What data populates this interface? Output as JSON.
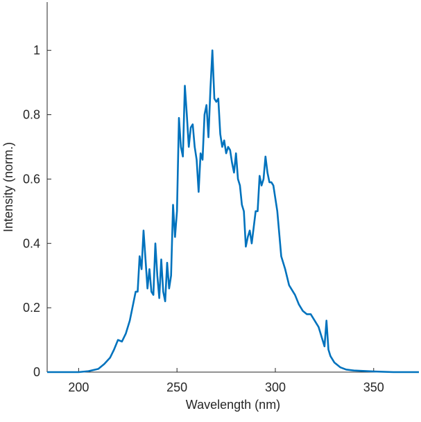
{
  "chart_data": {
    "type": "line",
    "xlabel": "Wavelength (nm)",
    "ylabel": "Intensity (norm.)",
    "color": "#0072bd",
    "x": [
      184,
      190,
      200,
      205,
      210,
      213,
      216,
      218,
      220,
      222,
      224,
      226,
      228,
      229,
      230,
      231,
      232,
      233,
      234,
      235,
      236,
      237,
      238,
      239,
      240,
      241,
      242,
      243,
      244,
      245,
      246,
      247,
      248,
      249,
      250,
      251,
      252,
      253,
      254,
      255,
      256,
      257,
      258,
      259,
      260,
      261,
      262,
      263,
      264,
      265,
      266,
      267,
      268,
      269,
      270,
      271,
      272,
      273,
      274,
      275,
      276,
      277,
      278,
      279,
      280,
      281,
      282,
      283,
      284,
      285,
      286,
      287,
      288,
      289,
      290,
      291,
      292,
      293,
      294,
      295,
      296,
      297,
      298,
      299,
      300,
      301,
      302,
      303,
      305,
      307,
      308,
      310,
      312,
      314,
      316,
      318,
      320,
      322,
      324,
      325,
      326,
      327,
      328,
      330,
      333,
      336,
      340,
      350,
      360,
      373
    ],
    "values": [
      0,
      0,
      0,
      0.003,
      0.01,
      0.025,
      0.045,
      0.07,
      0.1,
      0.095,
      0.12,
      0.16,
      0.22,
      0.25,
      0.25,
      0.36,
      0.32,
      0.44,
      0.35,
      0.26,
      0.32,
      0.25,
      0.24,
      0.4,
      0.3,
      0.23,
      0.35,
      0.25,
      0.22,
      0.34,
      0.26,
      0.3,
      0.52,
      0.42,
      0.5,
      0.79,
      0.7,
      0.67,
      0.89,
      0.8,
      0.7,
      0.76,
      0.77,
      0.7,
      0.66,
      0.56,
      0.68,
      0.66,
      0.8,
      0.83,
      0.73,
      0.88,
      1.0,
      0.85,
      0.84,
      0.85,
      0.74,
      0.7,
      0.72,
      0.68,
      0.7,
      0.69,
      0.65,
      0.62,
      0.68,
      0.6,
      0.58,
      0.52,
      0.5,
      0.39,
      0.42,
      0.44,
      0.4,
      0.45,
      0.5,
      0.5,
      0.61,
      0.58,
      0.6,
      0.67,
      0.62,
      0.59,
      0.59,
      0.58,
      0.54,
      0.5,
      0.43,
      0.36,
      0.32,
      0.27,
      0.26,
      0.24,
      0.21,
      0.19,
      0.18,
      0.18,
      0.16,
      0.14,
      0.1,
      0.08,
      0.16,
      0.07,
      0.05,
      0.03,
      0.015,
      0.008,
      0.005,
      0.002,
      0,
      0
    ],
    "xlim": [
      184,
      373
    ],
    "xticks": [
      200,
      250,
      300,
      350
    ],
    "ylim": [
      0,
      1.15
    ],
    "yticks": [
      0,
      0.2,
      0.4,
      0.6,
      0.8,
      1
    ]
  }
}
